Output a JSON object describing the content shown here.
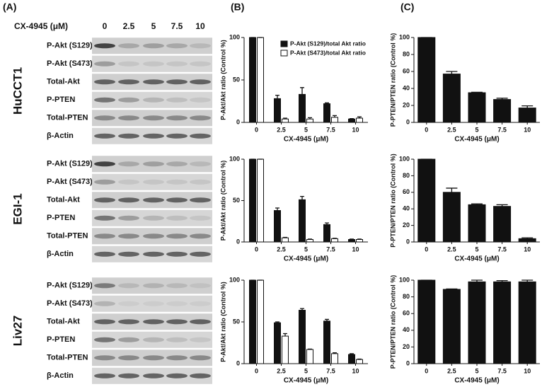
{
  "panel_labels": [
    "(A)",
    "(B)",
    "(C)"
  ],
  "blots": {
    "header": "CX-4945 (μM)",
    "concentrations": [
      "0",
      "2.5",
      "5",
      "7.5",
      "10"
    ],
    "cell_lines": [
      {
        "name": "HuCCT1",
        "rows": [
          "P-Akt (S129)",
          "P-Akt (S473)",
          "Total-Akt",
          "P-PTEN",
          "Total-PTEN",
          "β-Actin"
        ]
      },
      {
        "name": "EGI-1",
        "rows": [
          "P-Akt (S129)",
          "P-Akt (S473)",
          "Total-Akt",
          "P-PTEN",
          "Total-PTEN",
          "β-Actin"
        ]
      },
      {
        "name": "Liv27",
        "rows": [
          "P-Akt (S129)",
          "P-Akt (S473)",
          "Total-Akt",
          "P-PTEN",
          "Total-PTEN",
          "β-Actin"
        ]
      }
    ]
  },
  "chart_data": [
    {
      "type": "bar",
      "x_label": "CX-4945 (μM)",
      "y_label": "P-Akt/Akt ratio (Control %)",
      "categories": [
        "0",
        "2.5",
        "5",
        "7.5",
        "10"
      ],
      "ylim": [
        0,
        100
      ],
      "yticks": [
        0,
        50,
        100
      ],
      "legend": "top-right",
      "series": [
        {
          "name": "P-Akt (S129)/total Akt ratio",
          "color": "#111111",
          "values": [
            100,
            28,
            33,
            22,
            4
          ],
          "errors": [
            0,
            4,
            8,
            1,
            0.5
          ]
        },
        {
          "name": "P-Akt (S473)/total Akt ratio",
          "color": "#ffffff",
          "values": [
            100,
            4,
            4,
            6,
            5
          ],
          "errors": [
            0,
            1,
            1.5,
            2,
            1.5
          ]
        }
      ]
    },
    {
      "type": "bar",
      "x_label": "CX-4945 (μM)",
      "y_label": "P-Akt/Akt ratio (Control %)",
      "categories": [
        "0",
        "2.5",
        "5",
        "7.5",
        "10"
      ],
      "ylim": [
        0,
        100
      ],
      "yticks": [
        0,
        50,
        100
      ],
      "series": [
        {
          "color": "#111111",
          "values": [
            100,
            38,
            51,
            21,
            3
          ],
          "errors": [
            0,
            3,
            4,
            2,
            0.5
          ]
        },
        {
          "color": "#ffffff",
          "values": [
            100,
            5,
            3,
            4,
            3
          ],
          "errors": [
            0,
            0.5,
            0.5,
            0.5,
            0.5
          ]
        }
      ]
    },
    {
      "type": "bar",
      "x_label": "CX-4945 (μM)",
      "y_label": "P-Akt/Akt ratio (Control %)",
      "categories": [
        "0",
        "2.5",
        "5",
        "7.5",
        "10"
      ],
      "ylim": [
        0,
        100
      ],
      "yticks": [
        0,
        50,
        100
      ],
      "series": [
        {
          "color": "#111111",
          "values": [
            100,
            49,
            64,
            51,
            11
          ],
          "errors": [
            0,
            1,
            2,
            2,
            1
          ]
        },
        {
          "color": "#ffffff",
          "values": [
            100,
            33,
            17,
            12,
            5
          ],
          "errors": [
            0,
            3,
            0.5,
            1,
            0.5
          ]
        }
      ]
    },
    {
      "type": "bar",
      "x_label": "CX-4945 (μM)",
      "y_label": "P-PTEN/PTEN ratio (Control %)",
      "categories": [
        "0",
        "2.5",
        "5",
        "7.5",
        "10"
      ],
      "ylim": [
        0,
        100
      ],
      "yticks": [
        0,
        20,
        40,
        60,
        80,
        100
      ],
      "series": [
        {
          "color": "#111111",
          "values": [
            100,
            57,
            35,
            27,
            17
          ],
          "errors": [
            0,
            3,
            0.5,
            1.5,
            2.5
          ]
        }
      ]
    },
    {
      "type": "bar",
      "x_label": "CX-4945 (μM)",
      "y_label": "P-PTEN/PTEN ratio (Control %)",
      "categories": [
        "0",
        "2.5",
        "5",
        "7.5",
        "10"
      ],
      "ylim": [
        0,
        100
      ],
      "yticks": [
        0,
        20,
        40,
        60,
        80,
        100
      ],
      "series": [
        {
          "color": "#111111",
          "values": [
            100,
            60,
            45,
            43,
            4
          ],
          "errors": [
            0,
            5,
            1,
            2,
            1
          ]
        }
      ]
    },
    {
      "type": "bar",
      "x_label": "CX-4945 (μM)",
      "y_label": "P-PTEN/PTEN ratio (Control %)",
      "categories": [
        "0",
        "2.5",
        "5",
        "7.5",
        "10"
      ],
      "ylim": [
        0,
        100
      ],
      "yticks": [
        0,
        20,
        40,
        60,
        80,
        100
      ],
      "series": [
        {
          "color": "#111111",
          "values": [
            100,
            89,
            98,
            98,
            98
          ],
          "errors": [
            0,
            0.5,
            2,
            1.5,
            2
          ]
        }
      ]
    }
  ]
}
